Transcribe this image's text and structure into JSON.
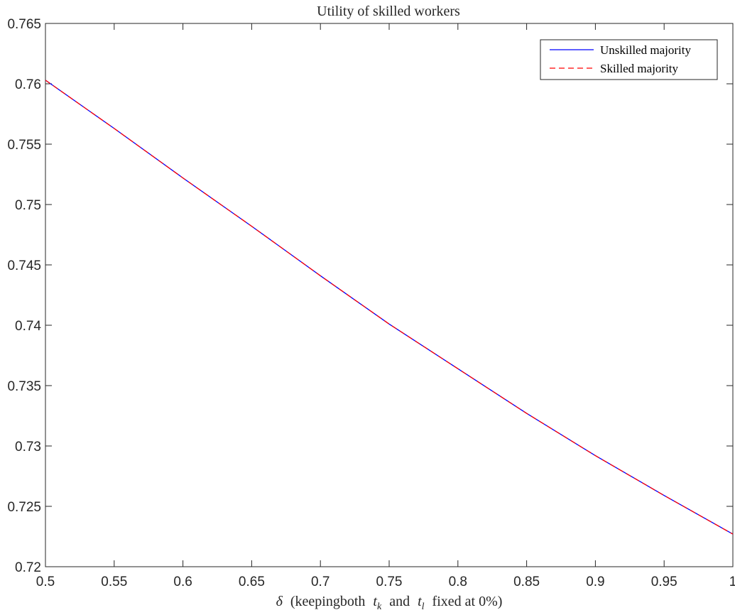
{
  "chart_data": {
    "type": "line",
    "title": "Utility of skilled workers",
    "xlabel": {
      "delta": "δ",
      "pre": "(keepingboth",
      "tk_t": "t",
      "tk_sub": "k",
      "mid": "and",
      "tl_t": "t",
      "tl_sub": "l",
      "post": "fixed at 0%)"
    },
    "ylabel": "",
    "xlim": [
      0.5,
      1
    ],
    "ylim": [
      0.72,
      0.765
    ],
    "xticks": [
      0.5,
      0.55,
      0.6,
      0.65,
      0.7,
      0.75,
      0.8,
      0.85,
      0.9,
      0.95,
      1
    ],
    "xtick_labels": [
      "0.5",
      "0.55",
      "0.6",
      "0.65",
      "0.7",
      "0.75",
      "0.8",
      "0.85",
      "0.9",
      "0.95",
      "1"
    ],
    "yticks": [
      0.72,
      0.725,
      0.73,
      0.735,
      0.74,
      0.745,
      0.75,
      0.755,
      0.76,
      0.765
    ],
    "ytick_labels": [
      "0.72",
      "0.725",
      "0.73",
      "0.735",
      "0.74",
      "0.745",
      "0.75",
      "0.755",
      "0.76",
      "0.765"
    ],
    "grid": false,
    "legend_position": "top-right",
    "series": [
      {
        "name": "Unskilled majority",
        "color": "#0000ff",
        "style": "solid",
        "x": [
          0.5,
          0.55,
          0.6,
          0.65,
          0.7,
          0.75,
          0.8,
          0.85,
          0.9,
          0.95,
          1.0
        ],
        "y": [
          0.7603,
          0.7563,
          0.7522,
          0.7482,
          0.7441,
          0.7401,
          0.7364,
          0.7327,
          0.7292,
          0.7259,
          0.7227
        ]
      },
      {
        "name": "Skilled majority",
        "color": "#ff0000",
        "style": "dashed",
        "x": [
          0.5,
          0.55,
          0.6,
          0.65,
          0.7,
          0.75,
          0.8,
          0.85,
          0.9,
          0.95,
          1.0
        ],
        "y": [
          0.7603,
          0.7563,
          0.7522,
          0.7482,
          0.7441,
          0.7401,
          0.7364,
          0.7327,
          0.7292,
          0.7259,
          0.7227
        ]
      }
    ]
  }
}
